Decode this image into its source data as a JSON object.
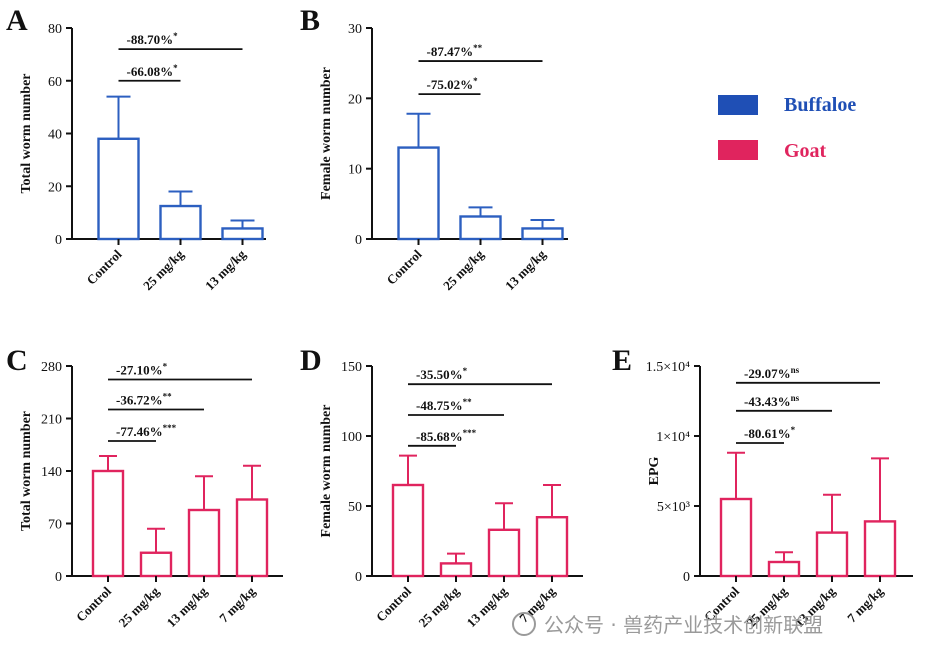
{
  "colors": {
    "buffaloe": "#2c5fc0",
    "goat": "#e0245e",
    "axis": "#111111",
    "watermark": "#9a9a9a"
  },
  "legend": [
    {
      "label": "Buffaloe",
      "color": "#1f4fb5"
    },
    {
      "label": "Goat",
      "color": "#e0245e"
    }
  ],
  "watermark": "公众号 · 兽药产业技术创新联盟",
  "chart_data": [
    {
      "panel": "A",
      "type": "bar",
      "species": "Buffaloe",
      "ylabel": "Total worm number",
      "ylim": [
        0,
        80
      ],
      "yticks": [
        "0",
        "20",
        "40",
        "60",
        "80"
      ],
      "categories": [
        "Control",
        "25 mg/kg",
        "13 mg/kg"
      ],
      "values": [
        38,
        12.5,
        4
      ],
      "errors": [
        16,
        5.5,
        3
      ],
      "annotations": [
        {
          "text": "-66.08%",
          "sup": "*",
          "from": 0,
          "to": 1,
          "y": 60
        },
        {
          "text": "-88.70%",
          "sup": "*",
          "from": 0,
          "to": 2,
          "y": 72
        }
      ]
    },
    {
      "panel": "B",
      "type": "bar",
      "species": "Buffaloe",
      "ylabel": "Female worm number",
      "ylim": [
        0,
        30
      ],
      "yticks": [
        "0",
        "10",
        "20",
        "30"
      ],
      "categories": [
        "Control",
        "25 mg/kg",
        "13 mg/kg"
      ],
      "values": [
        13,
        3.2,
        1.5
      ],
      "errors": [
        4.8,
        1.3,
        1.2
      ],
      "annotations": [
        {
          "text": "-75.02%",
          "sup": "*",
          "from": 0,
          "to": 1,
          "y": 20.6
        },
        {
          "text": "-87.47%",
          "sup": "**",
          "from": 0,
          "to": 2,
          "y": 25.3
        }
      ]
    },
    {
      "panel": "C",
      "type": "bar",
      "species": "Goat",
      "ylabel": "Total worm number",
      "ylim": [
        0,
        280
      ],
      "yticks": [
        "0",
        "70",
        "140",
        "210",
        "280"
      ],
      "categories": [
        "Control",
        "25 mg/kg",
        "13 mg/kg",
        "7 mg/kg"
      ],
      "values": [
        140,
        31,
        88,
        102
      ],
      "errors": [
        20,
        32,
        45,
        45
      ],
      "annotations": [
        {
          "text": "-77.46%",
          "sup": "***",
          "from": 0,
          "to": 1,
          "y": 180
        },
        {
          "text": "-36.72%",
          "sup": "**",
          "from": 0,
          "to": 2,
          "y": 222
        },
        {
          "text": "-27.10%",
          "sup": "*",
          "from": 0,
          "to": 3,
          "y": 262
        }
      ]
    },
    {
      "panel": "D",
      "type": "bar",
      "species": "Goat",
      "ylabel": "Female worm number",
      "ylim": [
        0,
        150
      ],
      "yticks": [
        "0",
        "50",
        "100",
        "150"
      ],
      "categories": [
        "Control",
        "25 mg/kg",
        "13 mg/kg",
        "7 mg/kg"
      ],
      "values": [
        65,
        9,
        33,
        42
      ],
      "errors": [
        21,
        7,
        19,
        23
      ],
      "annotations": [
        {
          "text": "-85.68%",
          "sup": "***",
          "from": 0,
          "to": 1,
          "y": 93
        },
        {
          "text": "-48.75%",
          "sup": "**",
          "from": 0,
          "to": 2,
          "y": 115
        },
        {
          "text": "-35.50%",
          "sup": "*",
          "from": 0,
          "to": 3,
          "y": 137
        }
      ]
    },
    {
      "panel": "E",
      "type": "bar",
      "species": "Goat",
      "ylabel": "EPG",
      "ylim": [
        0,
        15000
      ],
      "yticks": [
        "0",
        "5×10³",
        "1×10⁴",
        "1.5×10⁴"
      ],
      "categories": [
        "Control",
        "25 mg/kg",
        "13 mg/kg",
        "7 mg/kg"
      ],
      "values": [
        5500,
        1000,
        3100,
        3900
      ],
      "errors": [
        3300,
        700,
        2700,
        4500
      ],
      "annotations": [
        {
          "text": "-80.61%",
          "sup": "*",
          "from": 0,
          "to": 1,
          "y": 9500
        },
        {
          "text": "-43.43%",
          "sup": "ns",
          "from": 0,
          "to": 2,
          "y": 11800
        },
        {
          "text": "-29.07%",
          "sup": "ns",
          "from": 0,
          "to": 3,
          "y": 13800
        }
      ]
    }
  ]
}
